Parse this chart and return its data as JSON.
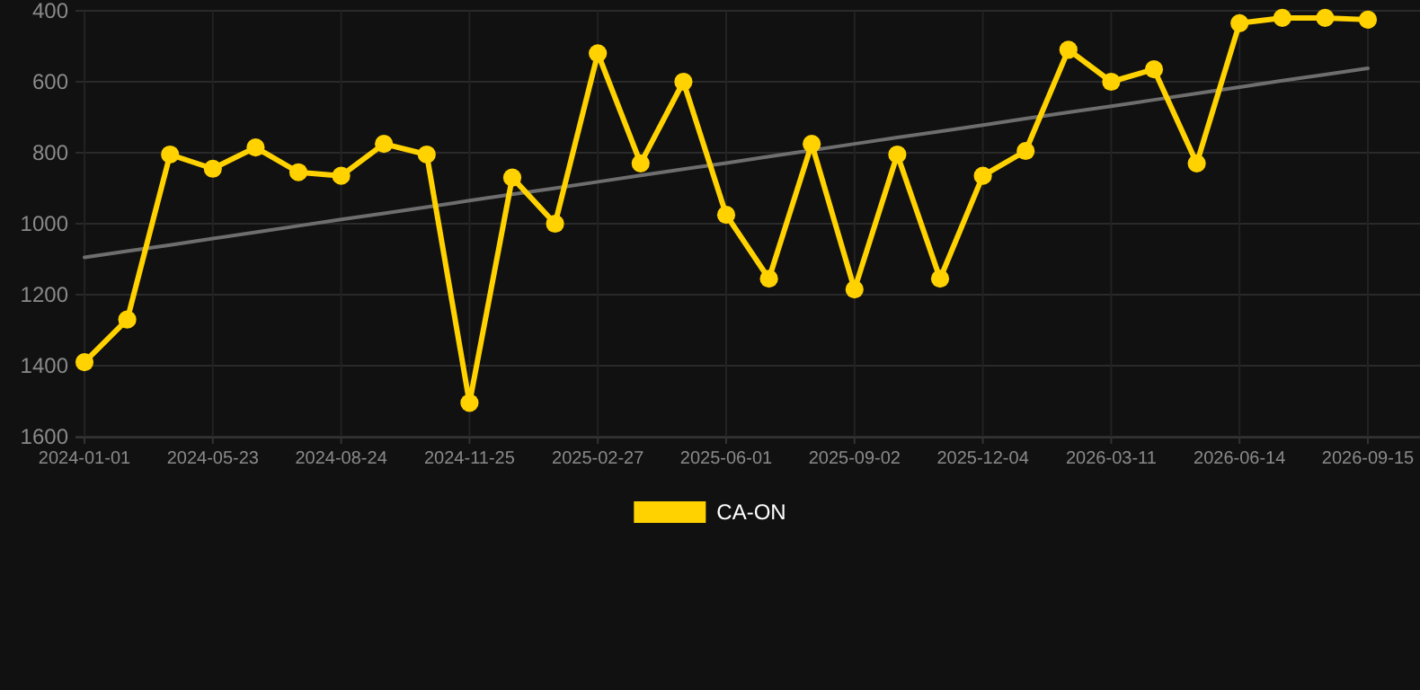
{
  "chart_data": {
    "type": "line",
    "categories": [
      "2024-01-01",
      null,
      null,
      "2024-05-23",
      null,
      null,
      "2024-08-24",
      null,
      null,
      "2024-11-25",
      null,
      null,
      "2025-02-27",
      null,
      null,
      "2025-06-01",
      null,
      null,
      "2025-09-02",
      null,
      null,
      "2025-12-04",
      null,
      null,
      "2026-03-11",
      null,
      null,
      "2026-06-14",
      null,
      null,
      "2026-09-15"
    ],
    "series": [
      {
        "name": "CA-ON",
        "color": "#ffd200",
        "values": [
          1390,
          1270,
          805,
          845,
          785,
          855,
          865,
          775,
          805,
          1505,
          870,
          1000,
          520,
          830,
          600,
          975,
          1155,
          775,
          1185,
          805,
          1155,
          865,
          795,
          510,
          600,
          565,
          830,
          435,
          420,
          420,
          425
        ]
      },
      {
        "type": "line",
        "color": "#6e6e6e",
        "marker": "none",
        "values": [
          1095,
          1077,
          1060,
          1042,
          1024,
          1006,
          988,
          971,
          953,
          935,
          917,
          900,
          882,
          864,
          846,
          829,
          811,
          793,
          775,
          757,
          740,
          722,
          704,
          686,
          669,
          651,
          633,
          615,
          597,
          580,
          562
        ]
      }
    ],
    "ylim": [
      1600,
      400
    ],
    "yticks": [
      400,
      600,
      800,
      1000,
      1200,
      1400,
      1600
    ],
    "grid": true,
    "legend": "bottom",
    "marker": "circle",
    "line_style": "solid"
  }
}
